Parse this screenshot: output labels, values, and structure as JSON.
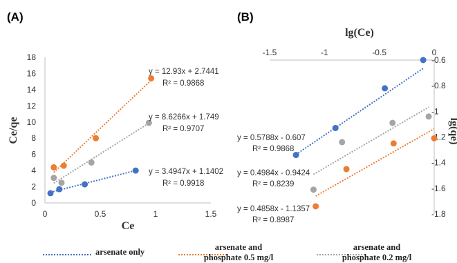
{
  "panel_labels": {
    "a": "(A)",
    "b": "(B)"
  },
  "colors": {
    "arsenate_only": "#4472C4",
    "phosphate_05": "#ED7D31",
    "phosphate_02": "#A5A5A5"
  },
  "legend": {
    "items": [
      {
        "key": "arsenate_only",
        "lines": [
          "arsenate only"
        ]
      },
      {
        "key": "phosphate_05",
        "lines": [
          "arsenate and",
          "phosphate 0.5 mg/l"
        ]
      },
      {
        "key": "phosphate_02",
        "lines": [
          "arsenate and",
          "phosphate 0.2 mg/l"
        ]
      }
    ]
  },
  "chart_data": [
    {
      "panel": "(A)",
      "type": "scatter",
      "title": "",
      "xlabel": "Ce",
      "ylabel": "Ce/qe",
      "xlim": [
        0,
        1.5
      ],
      "ylim": [
        0,
        18
      ],
      "x_ticks": [
        "0",
        "0.5",
        "1",
        "1.5"
      ],
      "y_ticks": [
        "0",
        "2",
        "4",
        "6",
        "8",
        "10",
        "12",
        "14",
        "16",
        "18"
      ],
      "grid": false,
      "series": [
        {
          "key": "arsenate_only",
          "points": [
            [
              0.05,
              1.2
            ],
            [
              0.13,
              1.7
            ],
            [
              0.36,
              2.3
            ],
            [
              0.82,
              4.0
            ]
          ],
          "trendline": {
            "slope": 3.4947,
            "intercept": 1.1402,
            "x_range": [
              0.05,
              0.82
            ]
          },
          "equation": "y = 3.4947x + 1.1402",
          "r2": "R² = 0.9918"
        },
        {
          "key": "phosphate_05",
          "points": [
            [
              0.08,
              4.4
            ],
            [
              0.17,
              4.6
            ],
            [
              0.46,
              8.0
            ],
            [
              0.96,
              15.4
            ]
          ],
          "trendline": {
            "slope": 12.93,
            "intercept": 2.7441,
            "x_range": [
              0.08,
              0.96
            ]
          },
          "equation": "y = 12.93x + 2.7441",
          "r2": "R² = 0.9868"
        },
        {
          "key": "phosphate_02",
          "points": [
            [
              0.08,
              3.1
            ],
            [
              0.15,
              2.5
            ],
            [
              0.42,
              5.0
            ],
            [
              0.94,
              9.9
            ]
          ],
          "trendline": {
            "slope": 8.6266,
            "intercept": 1.749,
            "x_range": [
              0.08,
              0.94
            ]
          },
          "equation": "y = 8.6266x + 1.749",
          "r2": "R² = 0.9707"
        }
      ]
    },
    {
      "panel": "(B)",
      "type": "scatter",
      "title": "",
      "xlabel": "lg(Ce)",
      "ylabel": "lg(qe)",
      "xlim": [
        -1.5,
        0
      ],
      "ylim": [
        -1.8,
        -0.6
      ],
      "x_ticks": [
        "-1.5",
        "-1",
        "-0.5",
        "0"
      ],
      "y_ticks": [
        "-0.6",
        "-0.8",
        "-1",
        "-1.2",
        "-1.4",
        "-1.6",
        "-1.8"
      ],
      "grid": false,
      "series": [
        {
          "key": "arsenate_only",
          "points": [
            [
              -1.26,
              -1.34
            ],
            [
              -0.9,
              -1.13
            ],
            [
              -0.45,
              -0.82
            ],
            [
              -0.1,
              -0.6
            ]
          ],
          "trendline": {
            "slope": 0.5788,
            "intercept": -0.607,
            "x_range": [
              -1.26,
              -0.1
            ]
          },
          "equation": "y = 0.5788x - 0.607",
          "r2": "R² = 0.9868"
        },
        {
          "key": "phosphate_05",
          "points": [
            [
              -1.08,
              -1.74
            ],
            [
              -0.8,
              -1.45
            ],
            [
              -0.37,
              -1.25
            ],
            [
              0.0,
              -1.21
            ]
          ],
          "trendline": {
            "slope": 0.4858,
            "intercept": -1.1357,
            "x_range": [
              -1.08,
              0.0
            ]
          },
          "equation": "y = 0.4858x - 1.1357",
          "r2": "R² = 0.8987"
        },
        {
          "key": "phosphate_02",
          "points": [
            [
              -1.1,
              -1.61
            ],
            [
              -0.84,
              -1.24
            ],
            [
              -0.38,
              -1.09
            ],
            [
              -0.05,
              -1.04
            ]
          ],
          "trendline": {
            "slope": 0.4984,
            "intercept": -0.9424,
            "x_range": [
              -1.1,
              -0.05
            ]
          },
          "equation": "y = 0.4984x - 0.9424",
          "r2": "R² = 0.8239"
        }
      ]
    }
  ]
}
